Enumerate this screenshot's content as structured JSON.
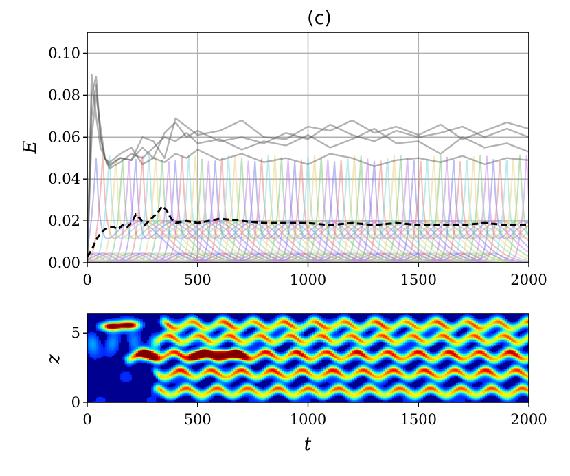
{
  "panel_label": "(c)",
  "chart_data": [
    {
      "type": "line",
      "ylabel": "E",
      "xlabel": "",
      "xlim": [
        0,
        2000
      ],
      "ylim": [
        0,
        0.11
      ],
      "x_ticks": [
        0,
        500,
        1000,
        1500,
        2000
      ],
      "x_tick_labels": [
        "0",
        "500",
        "1000",
        "1500",
        "2000"
      ],
      "y_ticks": [
        0.0,
        0.02,
        0.04,
        0.06,
        0.08,
        0.1
      ],
      "y_tick_labels": [
        "0.00",
        "0.02",
        "0.04",
        "0.06",
        "0.08",
        "0.10"
      ],
      "grid": true,
      "legend": "none",
      "mode_colors": [
        "#7b7be8",
        "#e87b7b",
        "#7bd6d6",
        "#e8d27b",
        "#7bc47b",
        "#c47be8"
      ],
      "mode_onsets": [
        40,
        70,
        100,
        130,
        160,
        190,
        220,
        250,
        280,
        310,
        340,
        370,
        400,
        430,
        460,
        490,
        520,
        550,
        580,
        610,
        640,
        670,
        700,
        730,
        760,
        790,
        820,
        850,
        880,
        910,
        940,
        970,
        1000,
        1030,
        1060,
        1090,
        1120,
        1150,
        1180,
        1210,
        1240,
        1270,
        1300,
        1330,
        1360,
        1390,
        1420,
        1450,
        1480,
        1510,
        1540,
        1570,
        1600,
        1630,
        1660,
        1690,
        1720,
        1750,
        1780,
        1810,
        1840,
        1870,
        1900,
        1930,
        1960,
        1990
      ],
      "mode_plateau": 0.05,
      "series": [
        {
          "style": "gray-1",
          "x": [
            0,
            20,
            40,
            60,
            80,
            100,
            150,
            200,
            250,
            300,
            350,
            400,
            450,
            500,
            600,
            700,
            800,
            900,
            1000,
            1100,
            1200,
            1300,
            1400,
            1500,
            1600,
            1700,
            1800,
            1900,
            2000
          ],
          "values": [
            0.0,
            0.08,
            0.089,
            0.06,
            0.05,
            0.045,
            0.048,
            0.052,
            0.05,
            0.055,
            0.06,
            0.058,
            0.062,
            0.057,
            0.059,
            0.054,
            0.058,
            0.056,
            0.061,
            0.055,
            0.059,
            0.064,
            0.057,
            0.058,
            0.052,
            0.06,
            0.055,
            0.057,
            0.053
          ]
        },
        {
          "style": "gray-2",
          "x": [
            0,
            20,
            40,
            60,
            80,
            100,
            150,
            200,
            250,
            300,
            350,
            400,
            450,
            500,
            600,
            700,
            800,
            900,
            1000,
            1100,
            1200,
            1300,
            1400,
            1500,
            1600,
            1700,
            1800,
            1900,
            2000
          ],
          "values": [
            0.0,
            0.06,
            0.08,
            0.065,
            0.05,
            0.047,
            0.05,
            0.049,
            0.055,
            0.05,
            0.062,
            0.067,
            0.06,
            0.063,
            0.058,
            0.06,
            0.057,
            0.062,
            0.059,
            0.066,
            0.061,
            0.058,
            0.063,
            0.06,
            0.062,
            0.065,
            0.06,
            0.064,
            0.06
          ]
        },
        {
          "style": "gray-3",
          "x": [
            0,
            20,
            40,
            60,
            80,
            100,
            150,
            200,
            250,
            300,
            350,
            400,
            450,
            500,
            600,
            700,
            800,
            900,
            1000,
            1100,
            1200,
            1300,
            1400,
            1500,
            1600,
            1700,
            1800,
            1900,
            2000
          ],
          "values": [
            0.0,
            0.09,
            0.07,
            0.055,
            0.05,
            0.048,
            0.052,
            0.055,
            0.047,
            0.05,
            0.048,
            0.052,
            0.05,
            0.054,
            0.049,
            0.052,
            0.048,
            0.05,
            0.047,
            0.052,
            0.05,
            0.046,
            0.049,
            0.05,
            0.048,
            0.051,
            0.047,
            0.05,
            0.049
          ]
        },
        {
          "style": "gray-4",
          "x": [
            0,
            20,
            40,
            60,
            80,
            100,
            150,
            200,
            250,
            300,
            350,
            400,
            450,
            500,
            600,
            700,
            800,
            900,
            1000,
            1100,
            1200,
            1300,
            1400,
            1500,
            1600,
            1700,
            1800,
            1900,
            2000
          ],
          "values": [
            0.0,
            0.07,
            0.085,
            0.06,
            0.05,
            0.046,
            0.05,
            0.049,
            0.06,
            0.058,
            0.05,
            0.069,
            0.065,
            0.061,
            0.063,
            0.068,
            0.06,
            0.059,
            0.065,
            0.063,
            0.068,
            0.062,
            0.065,
            0.061,
            0.066,
            0.059,
            0.063,
            0.067,
            0.064
          ]
        },
        {
          "style": "dashed-mean",
          "x": [
            0,
            20,
            40,
            60,
            80,
            100,
            120,
            140,
            160,
            180,
            200,
            220,
            240,
            260,
            280,
            300,
            320,
            340,
            360,
            380,
            400,
            450,
            500,
            550,
            600,
            700,
            800,
            900,
            1000,
            1100,
            1200,
            1300,
            1400,
            1500,
            1600,
            1700,
            1800,
            1900,
            2000
          ],
          "values": [
            0.003,
            0.006,
            0.011,
            0.014,
            0.016,
            0.017,
            0.017,
            0.016,
            0.018,
            0.017,
            0.019,
            0.023,
            0.021,
            0.018,
            0.02,
            0.022,
            0.024,
            0.027,
            0.025,
            0.021,
            0.019,
            0.02,
            0.019,
            0.02,
            0.021,
            0.02,
            0.019,
            0.019,
            0.019,
            0.018,
            0.019,
            0.018,
            0.019,
            0.018,
            0.018,
            0.018,
            0.019,
            0.018,
            0.018
          ]
        }
      ]
    },
    {
      "type": "heatmap",
      "xlabel": "t",
      "ylabel": "z",
      "xlim": [
        0,
        2000
      ],
      "ylim": [
        0,
        6.4
      ],
      "x_ticks": [
        0,
        500,
        1000,
        1500,
        2000
      ],
      "x_tick_labels": [
        "0",
        "500",
        "1000",
        "1500",
        "2000"
      ],
      "y_ticks": [
        0,
        5
      ],
      "y_tick_labels": [
        "0",
        "5"
      ],
      "colormap": "jet",
      "background_color": "#000090",
      "bands": [
        {
          "z": 0.8,
          "t_start": 330,
          "t_end": 2000,
          "amplitude": 0.7,
          "wavy": true
        },
        {
          "z": 2.1,
          "t_start": 330,
          "t_end": 2000,
          "amplitude": 0.75,
          "wavy": true
        },
        {
          "z": 3.4,
          "t_start": 200,
          "t_end": 2000,
          "amplitude": 0.8,
          "wavy": true
        },
        {
          "z": 4.6,
          "t_start": 330,
          "t_end": 2000,
          "amplitude": 0.7,
          "wavy": true
        },
        {
          "z": 5.6,
          "t_start": 360,
          "t_end": 2000,
          "amplitude": 0.7,
          "wavy": true
        }
      ],
      "hotspots": [
        {
          "t": 110,
          "z": 5.5,
          "amplitude": 1.0
        },
        {
          "t": 190,
          "z": 5.6,
          "amplitude": 0.95
        },
        {
          "t": 280,
          "z": 3.4,
          "amplitude": 0.8
        },
        {
          "t": 500,
          "z": 3.4,
          "amplitude": 0.95
        },
        {
          "t": 600,
          "z": 3.5,
          "amplitude": 0.98
        },
        {
          "t": 680,
          "z": 3.4,
          "amplitude": 0.85
        }
      ]
    }
  ]
}
